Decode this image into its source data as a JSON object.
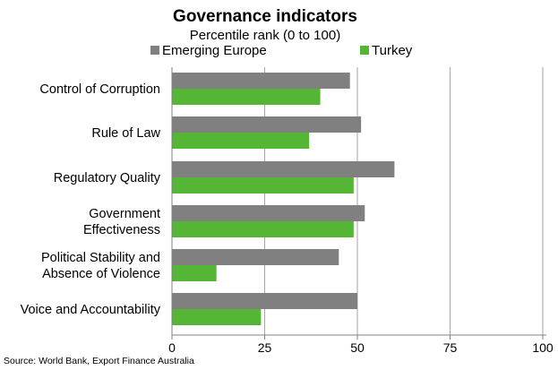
{
  "chart_data": {
    "type": "bar",
    "orientation": "horizontal",
    "title": "Governance indicators",
    "subtitle": "Percentile rank (0 to 100)",
    "categories": [
      [
        "Control of Corruption"
      ],
      [
        "Rule of Law"
      ],
      [
        "Regulatory Quality"
      ],
      [
        "Government",
        "Effectiveness"
      ],
      [
        "Political Stability and",
        "Absence of Violence"
      ],
      [
        "Voice and Accountability"
      ]
    ],
    "series": [
      {
        "name": "Emerging Europe",
        "color": "#808080",
        "values": [
          48,
          51,
          60,
          52,
          45,
          50
        ]
      },
      {
        "name": "Turkey",
        "color": "#55b534",
        "values": [
          40,
          37,
          49,
          49,
          12,
          24
        ]
      }
    ],
    "xlim": [
      0,
      100
    ],
    "xticks": [
      "0",
      "25",
      "50",
      "75",
      "100"
    ],
    "grid": "vertical",
    "legend_position": "top",
    "source": "Source: World Bank, Export Finance Australia"
  }
}
